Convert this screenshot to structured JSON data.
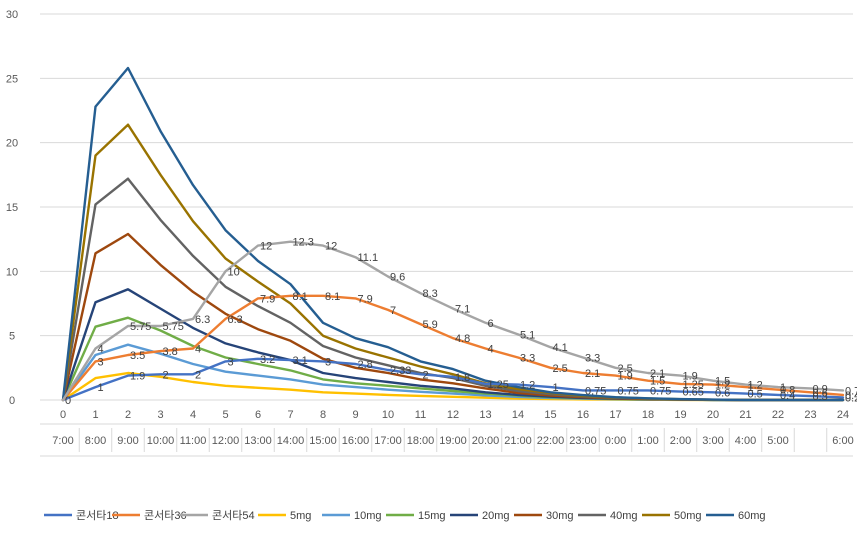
{
  "chart_data": {
    "type": "line",
    "x": [
      0,
      1,
      2,
      3,
      4,
      5,
      6,
      7,
      8,
      9,
      10,
      11,
      12,
      13,
      14,
      15,
      16,
      17,
      18,
      19,
      20,
      21,
      22,
      23,
      24
    ],
    "x_time_labels": [
      "7:00",
      "8:00",
      "9:00",
      "10:00",
      "11:00",
      "12:00",
      "13:00",
      "14:00",
      "15:00",
      "16:00",
      "17:00",
      "18:00",
      "19:00",
      "20:00",
      "21:00",
      "22:00",
      "23:00",
      "0:00",
      "1:00",
      "2:00",
      "3:00",
      "4:00",
      "5:00",
      "",
      "6:00"
    ],
    "ylim": [
      0,
      30
    ],
    "yticks": [
      0,
      5,
      10,
      15,
      20,
      25,
      30
    ],
    "legend_position": "bottom",
    "gridlines": true,
    "series": [
      {
        "name": "콘서타18",
        "color": "#4472C4",
        "values": [
          0,
          1,
          1.9,
          2,
          2,
          3,
          3.2,
          3.1,
          3,
          2.8,
          2.33,
          2,
          1.8,
          1.25,
          1.2,
          1,
          0.75,
          0.75,
          0.75,
          0.65,
          0.6,
          0.5,
          0.4,
          0.3,
          0.2
        ],
        "labels": [
          "0",
          "1",
          "1.9",
          "2",
          "2",
          "3",
          "3.2",
          "3.1",
          "3",
          "2.8",
          "2.33",
          "2",
          "1.8",
          "1.25",
          "1.2",
          "1",
          "0.75",
          "0.75",
          "0.75",
          "0.65",
          "0.6",
          "0.5",
          "0.4",
          "0.3",
          "0.2"
        ]
      },
      {
        "name": "콘서타36",
        "color": "#ED7D31",
        "values": [
          0,
          3,
          3.5,
          3.8,
          4,
          6.3,
          7.9,
          8.1,
          8.1,
          7.9,
          7,
          5.9,
          4.8,
          4,
          3.3,
          2.5,
          2.1,
          1.9,
          1.5,
          1.25,
          1.2,
          1,
          0.8,
          0.6,
          0.4
        ],
        "labels": [
          "",
          "3",
          "3.5",
          "3.8",
          "4",
          "6.3",
          "7.9",
          "8.1",
          "8.1",
          "7.9",
          "7",
          "5.9",
          "4.8",
          "4",
          "3.3",
          "2.5",
          "2.1",
          "1.9",
          "1.5",
          "1.25",
          "1.2",
          "1",
          "0.8",
          "0.6",
          "0.4"
        ]
      },
      {
        "name": "콘서타54",
        "color": "#A5A5A5",
        "values": [
          0,
          4,
          5.75,
          5.75,
          6.3,
          10,
          12,
          12.3,
          12,
          11.1,
          9.6,
          8.3,
          7.1,
          6,
          5.1,
          4.1,
          3.3,
          2.5,
          2.1,
          1.9,
          1.5,
          1.2,
          1,
          0.9,
          0.75
        ],
        "labels": [
          "",
          "4",
          "5.75",
          "5.75",
          "6.3",
          "10",
          "12",
          "12.3",
          "12",
          "11.1",
          "9.6",
          "8.3",
          "7.1",
          "6",
          "5.1",
          "4.1",
          "3.3",
          "2.5",
          "2.1",
          "1.9",
          "1.5",
          "1.2",
          "1",
          "0.9",
          "0.75"
        ]
      },
      {
        "name": "5mg",
        "color": "#FFC000",
        "values": [
          0,
          1.7,
          2.1,
          1.8,
          1.4,
          1.1,
          0.95,
          0.8,
          0.6,
          0.5,
          0.4,
          0.32,
          0.25,
          0.18,
          0.12,
          0.08,
          0.05,
          0.03,
          0.02,
          0.01,
          0,
          0,
          0,
          0,
          0
        ],
        "labels": []
      },
      {
        "name": "10mg",
        "color": "#5B9BD5",
        "values": [
          0,
          3.5,
          4.3,
          3.6,
          2.8,
          2.2,
          1.9,
          1.6,
          1.2,
          1,
          0.8,
          0.64,
          0.5,
          0.36,
          0.24,
          0.16,
          0.1,
          0.06,
          0.04,
          0.02,
          0.01,
          0,
          0,
          0,
          0
        ],
        "labels": []
      },
      {
        "name": "15mg",
        "color": "#70AD47",
        "values": [
          0,
          5.7,
          6.4,
          5.4,
          4.2,
          3.3,
          2.8,
          2.3,
          1.6,
          1.3,
          1.1,
          0.9,
          0.7,
          0.5,
          0.35,
          0.22,
          0.14,
          0.08,
          0.05,
          0.03,
          0.01,
          0,
          0,
          0,
          0
        ],
        "labels": []
      },
      {
        "name": "20mg",
        "color": "#264478",
        "values": [
          0,
          7.6,
          8.6,
          7.1,
          5.6,
          4.4,
          3.7,
          3.1,
          2.1,
          1.7,
          1.4,
          1.1,
          0.9,
          0.6,
          0.4,
          0.26,
          0.16,
          0.1,
          0.06,
          0.03,
          0.01,
          0,
          0,
          0,
          0
        ],
        "labels": []
      },
      {
        "name": "30mg",
        "color": "#9E480E",
        "values": [
          0,
          11.4,
          12.9,
          10.5,
          8.4,
          6.7,
          5.5,
          4.6,
          3.2,
          2.5,
          2.1,
          1.6,
          1.3,
          0.9,
          0.55,
          0.35,
          0.22,
          0.13,
          0.08,
          0.04,
          0.02,
          0,
          0,
          0,
          0
        ],
        "labels": []
      },
      {
        "name": "40mg",
        "color": "#636363",
        "values": [
          0,
          15.2,
          17.2,
          14,
          11.2,
          8.8,
          7.3,
          6,
          4.2,
          3.3,
          2.7,
          2.1,
          1.7,
          1.1,
          0.7,
          0.45,
          0.28,
          0.17,
          0.1,
          0.05,
          0.02,
          0,
          0,
          0,
          0
        ],
        "labels": []
      },
      {
        "name": "50mg",
        "color": "#997300",
        "values": [
          0,
          19,
          21.4,
          17.5,
          13.9,
          11,
          9.2,
          7.5,
          5,
          4,
          3.3,
          2.6,
          2,
          1.3,
          0.85,
          0.55,
          0.33,
          0.2,
          0.12,
          0.06,
          0.02,
          0,
          0,
          0,
          0
        ],
        "labels": []
      },
      {
        "name": "60mg",
        "color": "#255E91",
        "values": [
          0,
          22.8,
          25.8,
          20.9,
          16.7,
          13.2,
          10.8,
          9,
          6,
          4.8,
          4.1,
          3,
          2.4,
          1.5,
          1,
          0.6,
          0.38,
          0.22,
          0.13,
          0.07,
          0.03,
          0,
          0,
          0,
          0
        ],
        "labels": []
      }
    ]
  }
}
